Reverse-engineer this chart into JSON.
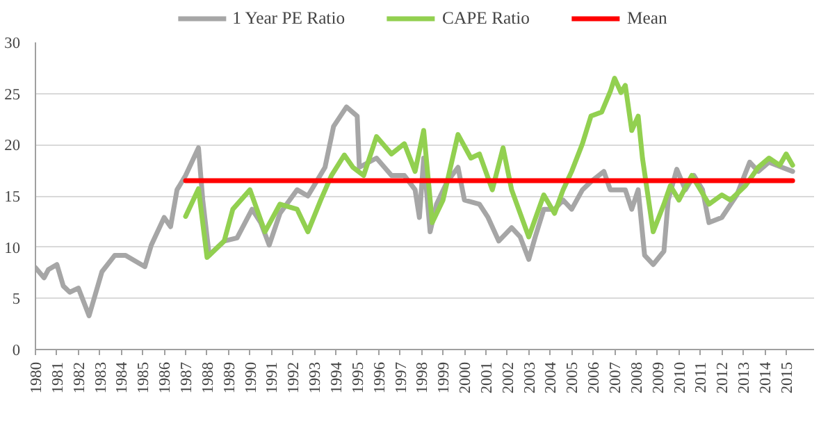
{
  "chart_data": {
    "type": "line",
    "xlim": [
      1980,
      2016.3
    ],
    "ylim": [
      0,
      30
    ],
    "xticks": [
      1980,
      1981,
      1982,
      1983,
      1984,
      1985,
      1986,
      1987,
      1988,
      1989,
      1990,
      1991,
      1992,
      1993,
      1994,
      1995,
      1996,
      1997,
      1998,
      1999,
      2000,
      2001,
      2002,
      2003,
      2004,
      2005,
      2006,
      2007,
      2008,
      2009,
      2010,
      2011,
      2012,
      2013,
      2014,
      2015
    ],
    "yticks": [
      0,
      5,
      10,
      15,
      20,
      25,
      30
    ],
    "grid": "y",
    "legend": "top",
    "marker": "none",
    "line_style": "solid",
    "series": [
      {
        "name": "1 Year PE Ratio",
        "color": "#a6a6a6",
        "x": [
          1980.0,
          1980.4,
          1980.6,
          1981.0,
          1981.3,
          1981.6,
          1982.0,
          1982.5,
          1983.1,
          1983.7,
          1984.2,
          1985.1,
          1985.4,
          1986.0,
          1986.3,
          1986.6,
          1987.0,
          1987.6,
          1987.8,
          1988.1,
          1988.8,
          1989.4,
          1990.1,
          1990.5,
          1990.9,
          1991.4,
          1992.2,
          1992.7,
          1993.5,
          1993.9,
          1994.5,
          1995.0,
          1995.1,
          1995.9,
          1996.6,
          1997.2,
          1997.7,
          1997.9,
          1998.1,
          1998.4,
          1998.7,
          1999.2,
          1999.7,
          2000.0,
          2000.7,
          2001.1,
          2001.6,
          2002.2,
          2002.6,
          2003.0,
          2003.3,
          2003.7,
          2004.2,
          2004.6,
          2005.0,
          2005.5,
          2005.9,
          2006.5,
          2006.8,
          2007.5,
          2007.8,
          2008.1,
          2008.4,
          2008.8,
          2009.3,
          2009.5,
          2009.9,
          2010.3,
          2010.7,
          2011.1,
          2011.4,
          2012.0,
          2012.7,
          2013.3,
          2013.7,
          2014.2,
          2014.8,
          2015.3
        ],
        "values": [
          8.0,
          7.0,
          7.8,
          8.3,
          6.2,
          5.6,
          6.0,
          3.3,
          7.6,
          9.2,
          9.2,
          8.1,
          10.2,
          12.9,
          12.0,
          15.6,
          17.0,
          19.7,
          14.6,
          9.2,
          10.6,
          10.9,
          13.7,
          12.4,
          10.2,
          13.3,
          15.6,
          15.0,
          17.8,
          21.8,
          23.7,
          22.8,
          17.8,
          18.7,
          17.0,
          17.0,
          15.6,
          12.9,
          18.7,
          11.5,
          14.2,
          16.4,
          17.8,
          14.6,
          14.2,
          12.9,
          10.6,
          11.9,
          11.0,
          8.8,
          11.0,
          13.7,
          13.7,
          14.6,
          13.7,
          15.6,
          16.4,
          17.4,
          15.6,
          15.6,
          13.7,
          15.6,
          9.2,
          8.3,
          9.6,
          14.6,
          17.6,
          15.6,
          17.0,
          15.6,
          12.4,
          12.9,
          15.1,
          18.3,
          17.4,
          18.3,
          17.8,
          17.4
        ]
      },
      {
        "name": "CAPE Ratio",
        "color": "#92d050",
        "x": [
          1987.0,
          1987.6,
          1988.0,
          1988.8,
          1989.2,
          1990.0,
          1990.7,
          1991.4,
          1992.2,
          1992.7,
          1993.3,
          1993.8,
          1994.4,
          1994.8,
          1995.3,
          1995.9,
          1996.6,
          1997.2,
          1997.7,
          1998.1,
          1998.5,
          1999.0,
          1999.7,
          2000.3,
          2000.7,
          2001.3,
          2001.8,
          2002.2,
          2003.0,
          2003.7,
          2004.2,
          2004.6,
          2005.0,
          2005.5,
          2005.9,
          2006.4,
          2006.8,
          2007.0,
          2007.3,
          2007.5,
          2007.8,
          2008.1,
          2008.3,
          2008.8,
          2009.3,
          2009.6,
          2010.0,
          2010.6,
          2011.4,
          2012.0,
          2012.4,
          2013.1,
          2013.7,
          2014.2,
          2014.7,
          2015.0,
          2015.3
        ],
        "values": [
          13.0,
          15.7,
          9.0,
          10.6,
          13.7,
          15.6,
          11.5,
          14.2,
          13.7,
          11.5,
          14.6,
          17.0,
          19.0,
          17.8,
          17.0,
          20.8,
          19.1,
          20.1,
          17.4,
          21.4,
          12.4,
          14.6,
          21.0,
          18.7,
          19.1,
          15.6,
          19.7,
          15.6,
          11.0,
          15.1,
          13.3,
          15.6,
          17.4,
          20.1,
          22.8,
          23.2,
          25.2,
          26.5,
          25.1,
          25.8,
          21.4,
          22.8,
          18.7,
          11.5,
          14.2,
          16.0,
          14.6,
          17.0,
          14.2,
          15.1,
          14.6,
          16.0,
          17.8,
          18.7,
          18.0,
          19.1,
          18.0
        ]
      },
      {
        "name": "Mean",
        "color": "#ff0000",
        "x": [
          1987.0,
          2015.3
        ],
        "values": [
          16.5,
          16.5
        ]
      }
    ]
  }
}
